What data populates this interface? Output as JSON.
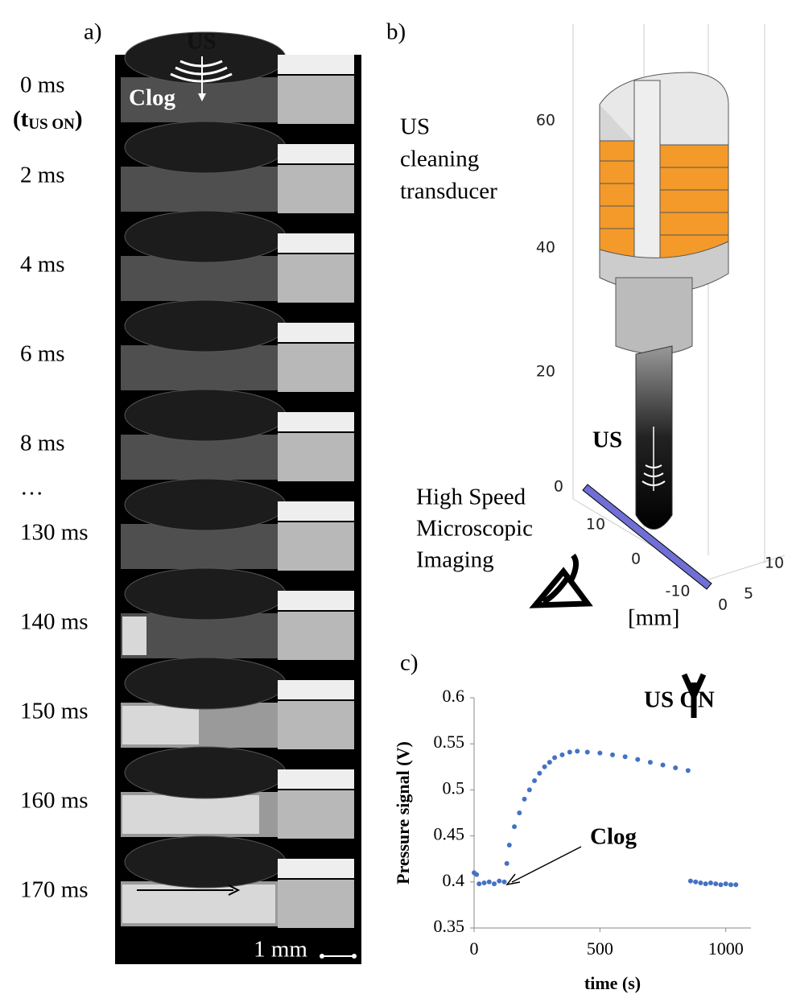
{
  "panel_a": {
    "label": "a)",
    "time_labels": [
      "0 ms",
      "2 ms",
      "4 ms",
      "6 ms",
      "8 ms",
      "…",
      "130 ms",
      "140 ms",
      "150 ms",
      "160 ms",
      "170 ms"
    ],
    "t_label": {
      "open": "(t",
      "sub": "US ON",
      "close": ")"
    },
    "overlay_us": "US",
    "overlay_clog": "Clog",
    "scale_bar": "1 mm"
  },
  "panel_b": {
    "label": "b)",
    "transducer_lines": [
      "US",
      "cleaning",
      "transducer"
    ],
    "imaging_lines": [
      "High Speed",
      "Microscopic",
      "Imaging"
    ],
    "us_label": "US",
    "unit": "[mm]",
    "z_ticks": [
      "0",
      "20",
      "40",
      "60"
    ],
    "x_ticks": [
      "10",
      "0",
      "-10"
    ],
    "y_ticks": [
      "0",
      "5",
      "10"
    ]
  },
  "chart_data": {
    "type": "scatter",
    "label": "c)",
    "y_label": "Pressure signal (V)",
    "x_label": "time (s)",
    "annotation_us_on": "US ON",
    "annotation_clog": "Clog",
    "color": "#4472c4",
    "x": [
      0,
      10,
      20,
      40,
      60,
      80,
      100,
      120,
      130,
      140,
      160,
      180,
      200,
      220,
      240,
      260,
      280,
      300,
      320,
      350,
      380,
      410,
      450,
      500,
      550,
      600,
      650,
      700,
      750,
      800,
      850,
      860,
      880,
      900,
      920,
      940,
      960,
      980,
      1000,
      1020,
      1040
    ],
    "values": [
      0.41,
      0.408,
      0.398,
      0.399,
      0.4,
      0.398,
      0.401,
      0.4,
      0.42,
      0.44,
      0.46,
      0.475,
      0.49,
      0.5,
      0.51,
      0.518,
      0.525,
      0.53,
      0.535,
      0.538,
      0.541,
      0.542,
      0.541,
      0.54,
      0.538,
      0.536,
      0.533,
      0.53,
      0.527,
      0.524,
      0.521,
      0.401,
      0.4,
      0.399,
      0.398,
      0.399,
      0.398,
      0.397,
      0.398,
      0.397,
      0.397
    ],
    "xlim": [
      0,
      1100
    ],
    "ylim": [
      0.35,
      0.6
    ],
    "xticks": [
      0,
      500,
      1000
    ],
    "yticks": [
      0.35,
      0.4,
      0.45,
      0.5,
      0.55,
      0.6
    ]
  }
}
